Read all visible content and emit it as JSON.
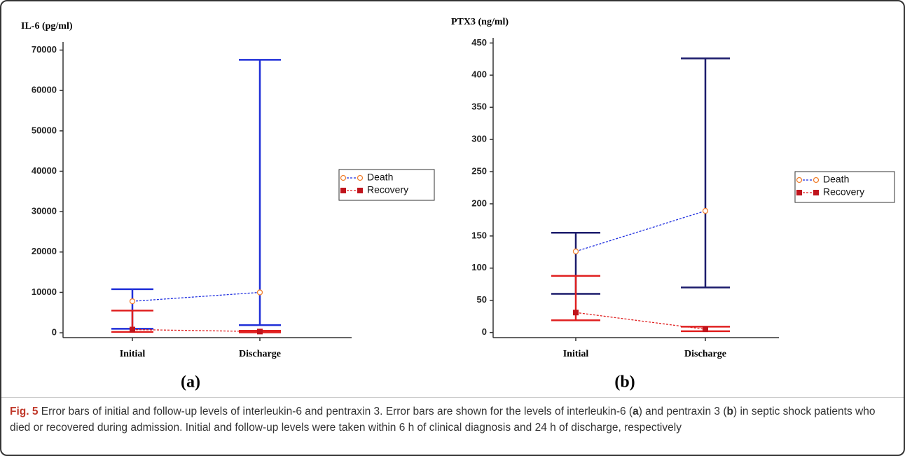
{
  "chart_data": [
    {
      "type": "errorbar",
      "y_label": "IL-6 (pg/ml)",
      "panel_label": "(a)",
      "categories": [
        "Initial",
        "Discharge"
      ],
      "ylim": [
        -1200,
        72000
      ],
      "yticks": [
        0,
        10000,
        20000,
        30000,
        40000,
        50000,
        60000,
        70000
      ],
      "series": [
        {
          "name": "Death",
          "color": "#1f2fe0",
          "marker": "circle",
          "marker_color": "#f08030",
          "error_color": "#1f2fd8",
          "values": [
            7800,
            10000
          ],
          "low": [
            1000,
            1900
          ],
          "high": [
            10800,
            67600
          ]
        },
        {
          "name": "Recovery",
          "color": "#e02020",
          "marker": "square",
          "marker_color": "#c0141c",
          "error_color": "#e02020",
          "values": [
            800,
            300
          ],
          "low": [
            200,
            100
          ],
          "high": [
            5500,
            500
          ]
        }
      ]
    },
    {
      "type": "errorbar",
      "y_label": "PTX3 (ng/ml)",
      "panel_label": "(b)",
      "categories": [
        "Initial",
        "Discharge"
      ],
      "ylim": [
        -8,
        458
      ],
      "yticks": [
        0,
        50,
        100,
        150,
        200,
        250,
        300,
        350,
        400,
        450
      ],
      "series": [
        {
          "name": "Death",
          "color": "#1f2fe0",
          "marker": "circle",
          "marker_color": "#f08030",
          "error_color": "#1c1c6c",
          "values": [
            126,
            189
          ],
          "low": [
            60,
            70
          ],
          "high": [
            155,
            426
          ]
        },
        {
          "name": "Recovery",
          "color": "#e02020",
          "marker": "square",
          "marker_color": "#c0141c",
          "error_color": "#e02020",
          "values": [
            31,
            5
          ],
          "low": [
            19,
            2
          ],
          "high": [
            88,
            9
          ]
        }
      ]
    }
  ],
  "caption": {
    "label": "Fig. 5",
    "parts": [
      "Error bars of initial and follow-up levels of interleukin-6 and pentraxin 3. Error bars are shown for the levels of interleukin-6 (",
      "a",
      ") and pentraxin 3 (",
      "b",
      ") in septic shock patients who died or recovered during admission. Initial and follow-up levels were taken within 6 h of clinical diagnosis and 24 h of discharge, respectively"
    ]
  }
}
